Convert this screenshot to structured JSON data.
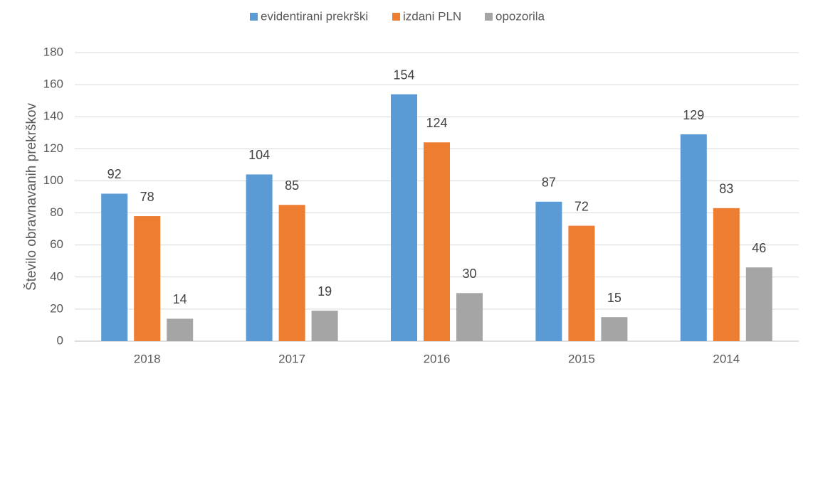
{
  "chart_data": {
    "type": "bar",
    "categories": [
      "2018",
      "2017",
      "2016",
      "2015",
      "2014"
    ],
    "series": [
      {
        "name": "evidentirani prekrški",
        "color": "#5b9bd5",
        "values": [
          92,
          104,
          154,
          87,
          129
        ]
      },
      {
        "name": "izdani PLN",
        "color": "#ed7d31",
        "values": [
          78,
          85,
          124,
          72,
          83
        ]
      },
      {
        "name": "opozorila",
        "color": "#a5a5a5",
        "values": [
          14,
          19,
          30,
          15,
          46
        ]
      }
    ],
    "ylabel": "Število obravnavanih prekrškov",
    "ylim": [
      0,
      180
    ],
    "yticks": [
      0,
      20,
      40,
      60,
      80,
      100,
      120,
      140,
      160,
      180
    ],
    "grid": true,
    "legend": "top"
  }
}
